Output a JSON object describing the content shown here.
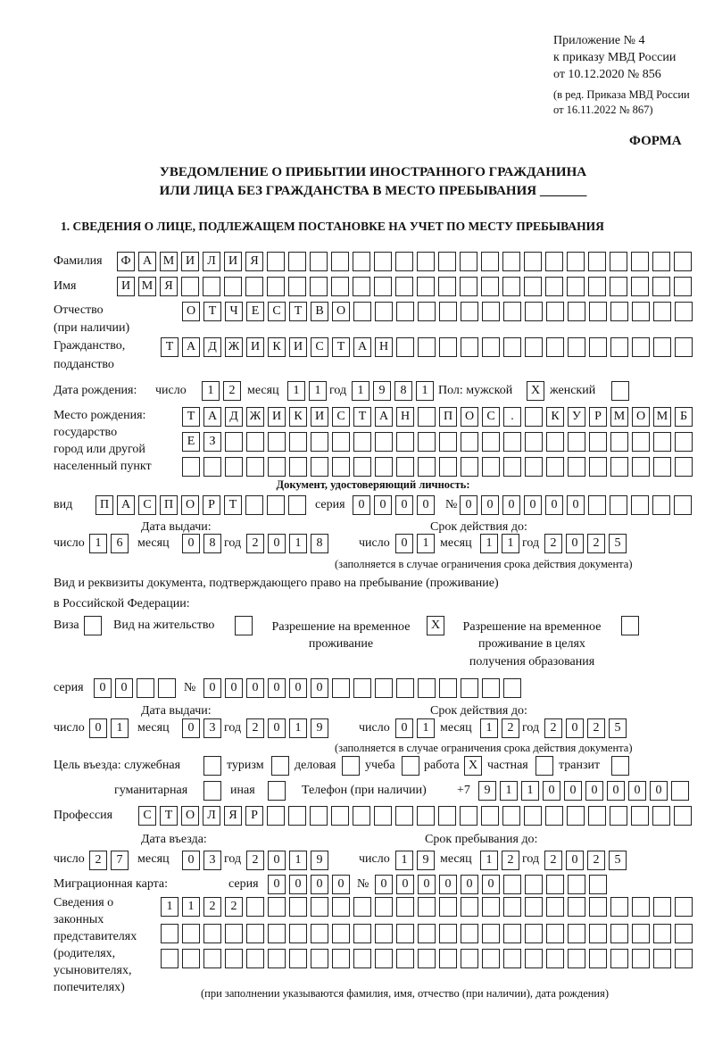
{
  "header": {
    "appendix": [
      "Приложение № 4",
      "к приказу МВД России",
      "от 10.12.2020 № 856"
    ],
    "edition": [
      "(в ред. Приказа МВД России",
      "от 16.11.2022 № 867)"
    ],
    "form_label": "ФОРМА",
    "title": [
      "УВЕДОМЛЕНИЕ О ПРИБЫТИИ ИНОСТРАННОГО ГРАЖДАНИНА",
      "ИЛИ ЛИЦА БЕЗ ГРАЖДАНСТВА В МЕСТО ПРЕБЫВАНИЯ _______"
    ],
    "section": "1. СВЕДЕНИЯ О ЛИЦЕ, ПОДЛЕЖАЩЕМ ПОСТАНОВКЕ НА УЧЕТ ПО МЕСТУ ПРЕБЫВАНИЯ"
  },
  "labels": {
    "surname": "Фамилия",
    "name": "Имя",
    "patronymic": [
      "Отчество",
      "(при наличии)"
    ],
    "citizenship": [
      "Гражданство,",
      "подданство"
    ],
    "birth_date": "Дата рождения:",
    "day": "число",
    "month": "месяц",
    "year": "год",
    "sex": "Пол: мужской",
    "female": "женский",
    "birth_place": [
      "Место рождения:",
      "государство",
      "город или другой",
      "населенный пункт"
    ],
    "id_doc": "Документ, удостоверяющий личность:",
    "kind": "вид",
    "series": "серия",
    "number": "№",
    "issue_date": "Дата выдачи:",
    "valid_until": "Срок действия до:",
    "validity_note": "(заполняется в случае ограничения срока действия документа)",
    "stay_doc": [
      "Вид и реквизиты документа, подтверждающего право на пребывание (проживание)",
      "в Российской Федерации:"
    ],
    "visa": "Виза",
    "residence_permit": "Вид на жительство",
    "temp_permit": [
      "Разрешение на временное",
      "проживание"
    ],
    "temp_permit_edu": [
      "Разрешение на временное",
      "проживание в целях",
      "получения образования"
    ],
    "purpose": "Цель въезда: служебная",
    "tourism": "туризм",
    "business": "деловая",
    "study": "учеба",
    "work": "работа",
    "private": "частная",
    "transit": "транзит",
    "humanitarian": "гуманитарная",
    "other": "иная",
    "phone": "Телефон (при наличии)",
    "phone_prefix": "+7",
    "profession": "Профессия",
    "entry_date": "Дата въезда:",
    "stay_until": "Срок пребывания до:",
    "migration_card": "Миграционная карта:",
    "representatives": [
      "Сведения о",
      "законных",
      "представителях",
      "(родителях,",
      "усыновителях,",
      "попечителях)"
    ],
    "representatives_note": "(при заполнении указываются фамилия, имя, отчество (при наличии), дата рождения)"
  },
  "values": {
    "surname": "ФАМИЛИЯ",
    "name": "ИМЯ",
    "patronymic": "ОТЧЕСТВО",
    "citizenship": "ТАДЖИКИСТАН",
    "birth_day": "12",
    "birth_month": "11",
    "birth_year": "1981",
    "sex_male": "X",
    "sex_female": "",
    "birth_place_1": "ТАДЖИКИСТАН ПОС. КУРМОМБ",
    "birth_place_2": "ЕЗ",
    "birth_place_3": "",
    "id_kind": "ПАСПОРТ",
    "id_series": "0000",
    "id_number": "000000",
    "id_issue_day": "16",
    "id_issue_month": "08",
    "id_issue_year": "2018",
    "id_valid_day": "01",
    "id_valid_month": "11",
    "id_valid_year": "2025",
    "visa": "",
    "residence_permit": "",
    "temp_permit": "X",
    "temp_permit_edu": "",
    "stay_series": "00",
    "stay_number": "000000",
    "stay_issue_day": "01",
    "stay_issue_month": "03",
    "stay_issue_year": "2019",
    "stay_valid_day": "01",
    "stay_valid_month": "12",
    "stay_valid_year": "2025",
    "purpose_service": "",
    "purpose_tourism": "",
    "purpose_business": "",
    "purpose_study": "",
    "purpose_work": "X",
    "purpose_private": "",
    "purpose_transit": "",
    "purpose_humanitarian": "",
    "purpose_other": "",
    "phone": "911000000",
    "profession": "СТОЛЯР",
    "entry_day": "27",
    "entry_month": "03",
    "entry_year": "2019",
    "stay_until_day": "19",
    "stay_until_month": "12",
    "stay_until_year": "2025",
    "mig_series": "0000",
    "mig_number": "000000",
    "rep_1": "1122",
    "rep_2": "",
    "rep_3": ""
  }
}
